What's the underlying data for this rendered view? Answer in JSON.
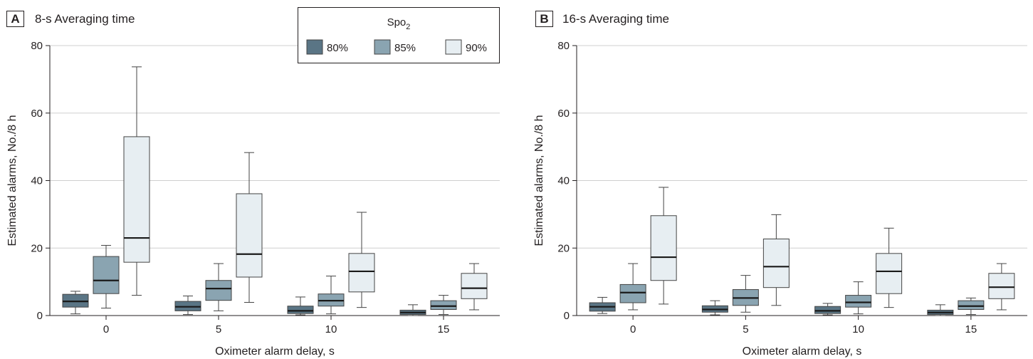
{
  "chart_data": [
    {
      "type": "box",
      "panel_letter": "A",
      "title": "8-s Averaging time",
      "xlabel": "Oximeter alarm delay, s",
      "ylabel": "Estimated alarms, No./8 h",
      "ylim": [
        0,
        80
      ],
      "yticks": [
        "0",
        "20",
        "40",
        "60",
        "80"
      ],
      "categories": [
        "0",
        "5",
        "10",
        "15"
      ],
      "grid": true,
      "series": [
        {
          "name": "80%",
          "color": "#5a7585",
          "boxes": [
            {
              "min": 0.5,
              "q1": 2.5,
              "median": 4.2,
              "q3": 6.3,
              "max": 7.2
            },
            {
              "min": 0.3,
              "q1": 1.4,
              "median": 2.6,
              "q3": 4.2,
              "max": 5.8
            },
            {
              "min": 0.2,
              "q1": 0.6,
              "median": 1.4,
              "q3": 2.8,
              "max": 5.5
            },
            {
              "min": 0,
              "q1": 0.3,
              "median": 0.9,
              "q3": 1.6,
              "max": 3.2
            }
          ]
        },
        {
          "name": "85%",
          "color": "#8aa4b1",
          "boxes": [
            {
              "min": 2.2,
              "q1": 6.5,
              "median": 10.4,
              "q3": 17.5,
              "max": 20.8
            },
            {
              "min": 1.4,
              "q1": 4.5,
              "median": 8.0,
              "q3": 10.4,
              "max": 15.4
            },
            {
              "min": 0.5,
              "q1": 2.8,
              "median": 4.4,
              "q3": 6.4,
              "max": 11.7
            },
            {
              "min": 0.3,
              "q1": 1.8,
              "median": 2.8,
              "q3": 4.4,
              "max": 6.0
            }
          ]
        },
        {
          "name": "90%",
          "color": "#e7eef2",
          "boxes": [
            {
              "min": 6.0,
              "q1": 15.8,
              "median": 23.0,
              "q3": 53.0,
              "max": 73.7
            },
            {
              "min": 3.9,
              "q1": 11.4,
              "median": 18.2,
              "q3": 36.1,
              "max": 48.3
            },
            {
              "min": 2.4,
              "q1": 7.0,
              "median": 13.1,
              "q3": 18.4,
              "max": 30.6
            },
            {
              "min": 1.7,
              "q1": 5.0,
              "median": 8.1,
              "q3": 12.5,
              "max": 15.4
            }
          ]
        }
      ]
    },
    {
      "type": "box",
      "panel_letter": "B",
      "title": "16-s Averaging time",
      "xlabel": "Oximeter alarm delay, s",
      "ylabel": "Estimated alarms, No./8 h",
      "ylim": [
        0,
        80
      ],
      "yticks": [
        "0",
        "20",
        "40",
        "60",
        "80"
      ],
      "categories": [
        "0",
        "5",
        "10",
        "15"
      ],
      "grid": true,
      "series": [
        {
          "name": "80%",
          "color": "#5a7585",
          "boxes": [
            {
              "min": 0.6,
              "q1": 1.3,
              "median": 2.6,
              "q3": 3.8,
              "max": 5.4
            },
            {
              "min": 0.2,
              "q1": 1.0,
              "median": 1.8,
              "q3": 2.9,
              "max": 4.4
            },
            {
              "min": 0.2,
              "q1": 0.6,
              "median": 1.4,
              "q3": 2.7,
              "max": 3.6
            },
            {
              "min": 0,
              "q1": 0.3,
              "median": 0.9,
              "q3": 1.6,
              "max": 3.2
            }
          ]
        },
        {
          "name": "85%",
          "color": "#8aa4b1",
          "boxes": [
            {
              "min": 1.7,
              "q1": 3.8,
              "median": 6.8,
              "q3": 9.2,
              "max": 15.4
            },
            {
              "min": 1.0,
              "q1": 3.0,
              "median": 5.2,
              "q3": 7.7,
              "max": 11.9
            },
            {
              "min": 0.5,
              "q1": 2.5,
              "median": 3.9,
              "q3": 6.0,
              "max": 10.0
            },
            {
              "min": 0.3,
              "q1": 1.8,
              "median": 2.8,
              "q3": 4.4,
              "max": 5.2
            }
          ]
        },
        {
          "name": "90%",
          "color": "#e7eef2",
          "boxes": [
            {
              "min": 3.4,
              "q1": 10.4,
              "median": 17.3,
              "q3": 29.6,
              "max": 38.0
            },
            {
              "min": 3.0,
              "q1": 8.3,
              "median": 14.5,
              "q3": 22.7,
              "max": 29.9
            },
            {
              "min": 2.4,
              "q1": 6.5,
              "median": 13.1,
              "q3": 18.4,
              "max": 25.9
            },
            {
              "min": 1.7,
              "q1": 5.0,
              "median": 8.4,
              "q3": 12.5,
              "max": 15.4
            }
          ]
        }
      ]
    }
  ],
  "legend": {
    "title_main": "Spo",
    "title_sub": "2",
    "placement": "top-right of panel A"
  }
}
